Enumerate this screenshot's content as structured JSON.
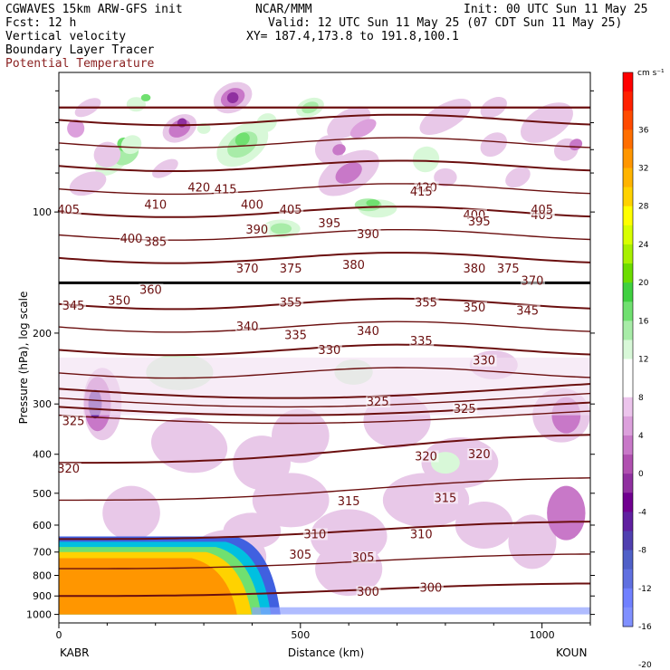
{
  "header": {
    "line1_left": "CGWAVES 15km ARW-GFS init",
    "line1_mid": "NCAR/MMM",
    "line1_right": "Init: 00 UTC Sun 11 May 25",
    "line2_left": "Fcst:   12 h",
    "line2_right": "Valid: 12 UTC Sun 11 May 25 (07 CDT Sun 11 May 25)",
    "line3_left": "Vertical velocity",
    "line3_right": "XY= 187.4,173.8 to 191.8,100.1",
    "line4_left": "Boundary Layer Tracer",
    "line5_left": "Potential Temperature"
  },
  "chart_data": {
    "type": "heatmap",
    "xlabel": "Distance (km)",
    "ylabel": "Pressure (hPa), log scale",
    "xlim": [
      0,
      1100
    ],
    "x_ticks": [
      "0",
      "500",
      "1000"
    ],
    "y_ticks": [
      "100",
      "200",
      "300",
      "400",
      "500",
      "600",
      "700",
      "800",
      "900",
      "1000"
    ],
    "x_end_labels": [
      "KABR",
      "KOUN"
    ],
    "colorbar": {
      "unit": "cm s⁻¹",
      "labels": [
        "36",
        "32",
        "28",
        "24",
        "20",
        "16",
        "12",
        "8",
        "4",
        "0",
        "-4",
        "-8",
        "-12",
        "-16",
        "-20"
      ],
      "colors": [
        "#ff0000",
        "#ff2000",
        "#ff4a00",
        "#ff6e00",
        "#ff9600",
        "#ffb400",
        "#ffd200",
        "#ffff00",
        "#d8ff00",
        "#a8f000",
        "#6cdc00",
        "#40d040",
        "#70e070",
        "#a8eca8",
        "#d8f8d8",
        "#ffffff",
        "#ffffff",
        "#ecc4ec",
        "#dca0dc",
        "#c878c8",
        "#b050b0",
        "#9030a0",
        "#700090",
        "#6020a0",
        "#5040b0",
        "#5060c8",
        "#6070e0",
        "#7080ff",
        "#8090ff"
      ]
    },
    "theta_labels": [
      "420",
      "415",
      "420",
      "415",
      "410",
      "405",
      "405",
      "400",
      "400",
      "395",
      "405",
      "400",
      "395",
      "405",
      "390",
      "385",
      "390",
      "380",
      "375",
      "370",
      "360",
      "380",
      "375",
      "370",
      "345",
      "350",
      "355",
      "355",
      "350",
      "345",
      "340",
      "335",
      "340",
      "335",
      "330",
      "330",
      "325",
      "325",
      "325",
      "320",
      "320",
      "320",
      "315",
      "315",
      "310",
      "310",
      "305",
      "305",
      "300",
      "300"
    ],
    "theta_levels": [
      300,
      305,
      310,
      315,
      320,
      325,
      330,
      335,
      340,
      345,
      350,
      355,
      360,
      370,
      375,
      380,
      385,
      390,
      395,
      400,
      405,
      410,
      415,
      420
    ]
  }
}
